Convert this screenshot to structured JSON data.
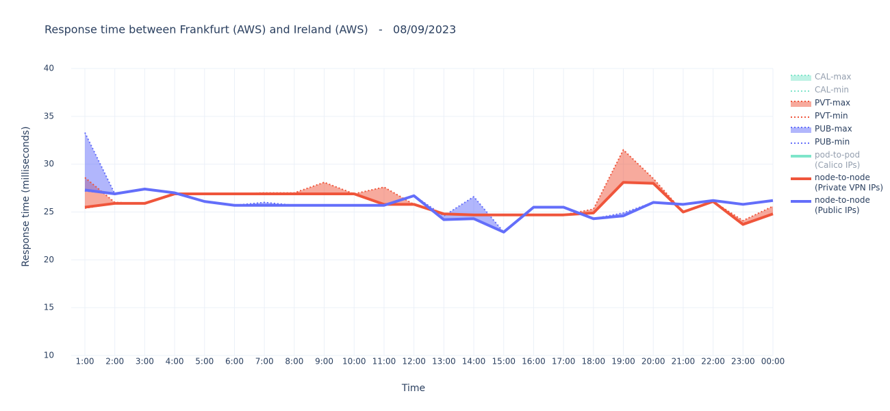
{
  "chart_data": {
    "type": "line",
    "title": "Response time between Frankfurt (AWS) and Ireland (AWS)   -   08/09/2023",
    "x_label": "Time",
    "y_label": "Response time (milliseconds)",
    "categories": [
      "1:00",
      "2:00",
      "3:00",
      "4:00",
      "5:00",
      "6:00",
      "7:00",
      "8:00",
      "9:00",
      "10:00",
      "11:00",
      "12:00",
      "13:00",
      "14:00",
      "15:00",
      "16:00",
      "17:00",
      "18:00",
      "19:00",
      "20:00",
      "21:00",
      "22:00",
      "23:00",
      "00:00"
    ],
    "ylim": [
      10,
      40
    ],
    "yticks": [
      10,
      15,
      20,
      25,
      30,
      35,
      40
    ],
    "grid": true,
    "legend": "right",
    "series": [
      {
        "name": "CAL-max",
        "color": "#00cc96",
        "dash": "dot",
        "width": 2,
        "fill": "tonext",
        "visible": false
      },
      {
        "name": "CAL-min",
        "color": "#00cc96",
        "dash": "dot",
        "width": 2,
        "visible": false
      },
      {
        "name": "PVT-max",
        "color": "#ef553b",
        "dash": "dot",
        "width": 2,
        "fill": "tonext",
        "visible": true,
        "values": [
          28.6,
          26.0,
          25.9,
          26.9,
          26.9,
          26.9,
          27.0,
          27.0,
          28.1,
          26.9,
          27.6,
          25.8,
          24.8,
          24.7,
          24.7,
          24.7,
          24.7,
          25.3,
          31.5,
          28.5,
          25.0,
          26.1,
          24.1,
          25.6
        ]
      },
      {
        "name": "PVT-min",
        "color": "#ef553b",
        "dash": "dot",
        "width": 2,
        "visible": true,
        "values": [
          25.4,
          25.9,
          25.9,
          26.9,
          26.9,
          26.9,
          26.9,
          26.9,
          26.9,
          26.9,
          25.8,
          25.8,
          24.8,
          24.7,
          24.7,
          24.7,
          24.7,
          24.9,
          28.1,
          28.0,
          25.0,
          26.1,
          23.8,
          24.8
        ]
      },
      {
        "name": "PUB-max",
        "color": "#636efa",
        "dash": "dot",
        "width": 2,
        "fill": "tonext",
        "visible": true,
        "values": [
          33.3,
          26.9,
          27.4,
          27.0,
          26.1,
          25.7,
          26.0,
          25.7,
          25.7,
          25.7,
          25.7,
          26.7,
          24.6,
          26.6,
          22.9,
          25.5,
          25.5,
          24.3,
          24.9,
          26.0,
          25.8,
          26.2,
          25.8,
          26.2
        ]
      },
      {
        "name": "PUB-min",
        "color": "#636efa",
        "dash": "dot",
        "width": 2,
        "visible": true,
        "values": [
          27.2,
          26.9,
          27.4,
          27.0,
          26.1,
          25.7,
          25.7,
          25.7,
          25.7,
          25.7,
          25.7,
          26.7,
          24.2,
          24.3,
          22.9,
          25.5,
          25.5,
          24.3,
          24.6,
          26.0,
          25.8,
          26.2,
          25.8,
          26.2
        ]
      },
      {
        "name": "pod-to-pod\n(Calico IPs)",
        "color": "#00cc96",
        "dash": "solid",
        "width": 4,
        "visible": false
      },
      {
        "name": "node-to-node\n(Private VPN IPs)",
        "color": "#ef553b",
        "dash": "solid",
        "width": 4,
        "visible": true,
        "values": [
          25.5,
          25.9,
          25.9,
          26.9,
          26.9,
          26.9,
          26.9,
          26.9,
          26.9,
          26.9,
          25.8,
          25.8,
          24.8,
          24.7,
          24.7,
          24.7,
          24.7,
          24.9,
          28.1,
          28.0,
          25.0,
          26.1,
          23.7,
          24.8
        ]
      },
      {
        "name": "node-to-node\n(Public IPs)",
        "color": "#636efa",
        "dash": "solid",
        "width": 4,
        "visible": true,
        "values": [
          27.3,
          26.9,
          27.4,
          27.0,
          26.1,
          25.7,
          25.7,
          25.7,
          25.7,
          25.7,
          25.7,
          26.7,
          24.2,
          24.3,
          22.9,
          25.5,
          25.5,
          24.3,
          24.6,
          26.0,
          25.8,
          26.2,
          25.8,
          26.2
        ]
      }
    ]
  }
}
